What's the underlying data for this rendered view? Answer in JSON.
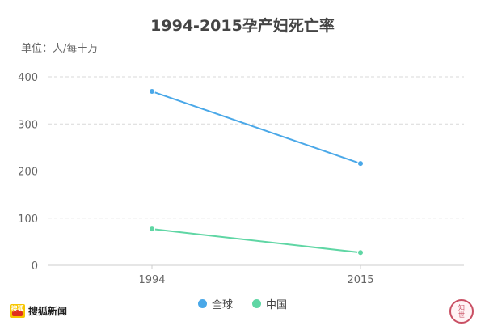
{
  "chart_data": {
    "type": "line",
    "title": "1994-2015孕产妇死亡率",
    "unit_label": "单位：人/每十万",
    "categories": [
      "1994",
      "2015"
    ],
    "ylim": [
      0,
      400
    ],
    "yticks": [
      0,
      100,
      200,
      300,
      400
    ],
    "grid": true,
    "legend_position": "bottom",
    "series": [
      {
        "name": "全球",
        "values": [
          369,
          216
        ],
        "color": "#4aa8e8"
      },
      {
        "name": "中国",
        "values": [
          77,
          27
        ],
        "color": "#5fd6a4"
      }
    ]
  },
  "brand": {
    "logo_text": "搜狐",
    "name": "搜狐新闻"
  },
  "corner_logo": {
    "line1": "知",
    "line2": "世",
    "icon": "seal-logo"
  },
  "colors": {
    "grid": "#d9d9d9",
    "axis": "#cccccc",
    "tick_text": "#666666"
  }
}
